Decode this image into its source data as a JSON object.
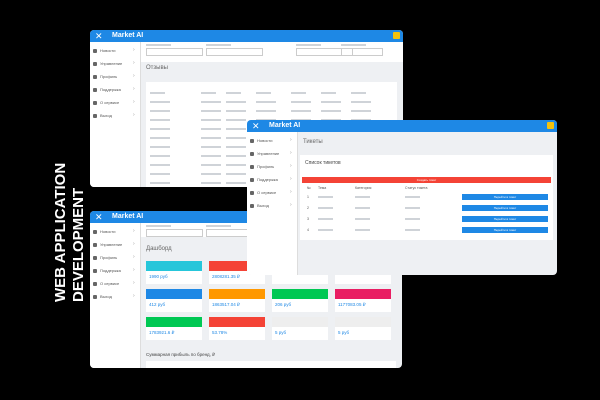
{
  "side_label": "WEB APPLICATION DEVELOPMENT",
  "windows": [
    {
      "app": "Market AI",
      "menu": [
        "Новости",
        "Управление",
        "Профиль",
        "Поддержка",
        "О сервисе",
        "Выход"
      ],
      "page_title": "Отзывы"
    },
    {
      "app": "Market AI",
      "menu": [
        "Новости",
        "Управление",
        "Профиль",
        "Поддержка",
        "О сервисе",
        "Выход"
      ],
      "page_title": "Тикеты",
      "section_title": "Список тикетов",
      "create_button": "Создать тикет",
      "table": {
        "headers": [
          "№",
          "Тема",
          "Категория",
          "Статус тикета"
        ],
        "rows": [
          {
            "n": "1",
            "button": "Перейти в тикет"
          },
          {
            "n": "2",
            "button": "Перейти в тикет"
          },
          {
            "n": "3",
            "button": "Перейти в тикет"
          },
          {
            "n": "4",
            "button": "Перейти в тикет"
          }
        ]
      }
    },
    {
      "app": "Market AI",
      "menu": [
        "Новости",
        "Управление",
        "Профиль",
        "Поддержка",
        "О сервисе",
        "Выход"
      ],
      "page_title": "Дашборд",
      "cards": [
        {
          "value": "1990 руб",
          "color": "#26c6da"
        },
        {
          "value": "2808281.35 ₽",
          "color": "#f44336"
        },
        {
          "value": "",
          "color": "#ffffff"
        },
        {
          "value": "",
          "color": "#1e88e5"
        },
        {
          "value": "412 руб",
          "color": "#1e88e5"
        },
        {
          "value": "1863517.04 ₽",
          "color": "#ff9800"
        },
        {
          "value": "206 руб",
          "color": "#00c853"
        },
        {
          "value": "1177083.05 ₽",
          "color": "#e91e63"
        },
        {
          "value": "1783921.6 ₽",
          "color": "#00c853"
        },
        {
          "value": "53.78%",
          "color": "#f44336"
        },
        {
          "value": "5 руб",
          "color": "#eeeeee"
        },
        {
          "value": "5 руб",
          "color": "#eeeeee"
        }
      ],
      "chart_title": "Суммарная прибыль по бренд, ₽"
    }
  ]
}
